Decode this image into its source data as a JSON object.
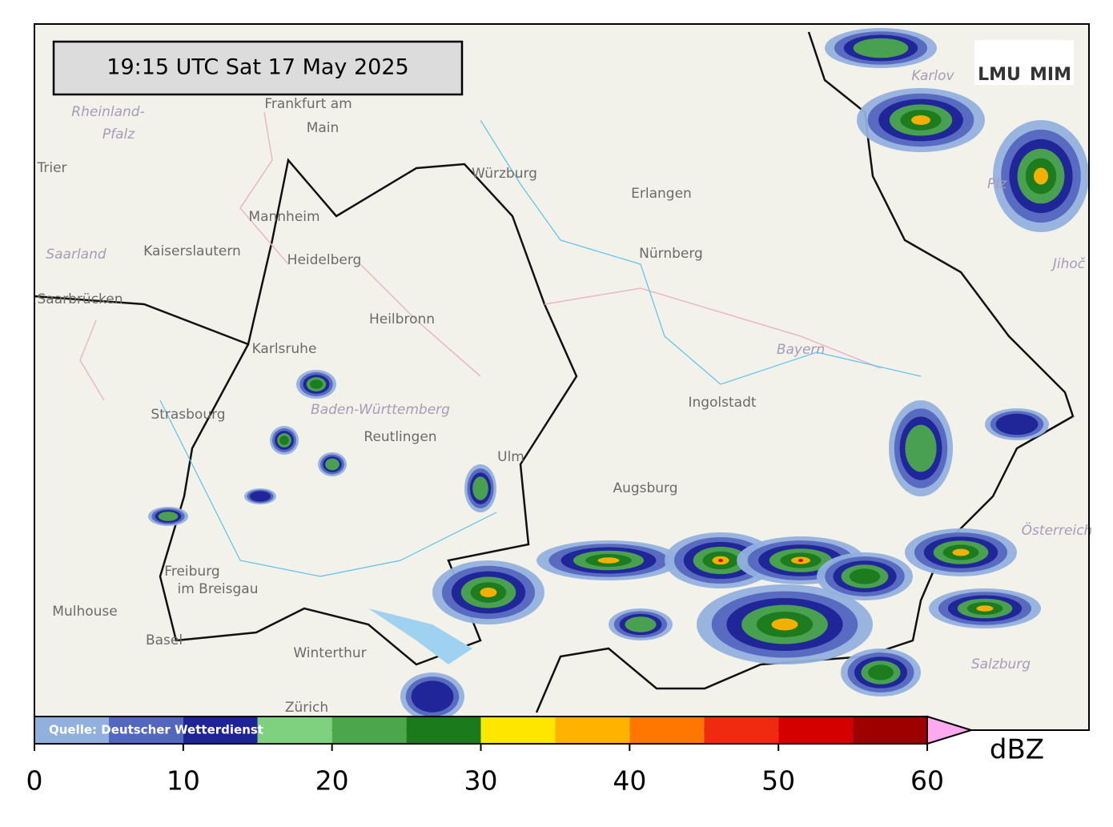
{
  "header": {
    "timestamp": "19:15 UTC  Sat 17 May 2025",
    "logo": {
      "left": "LMU",
      "right": "MIM"
    }
  },
  "map": {
    "places": [
      "Frankfurt am",
      "Main",
      "Rheinland-",
      "Pfalz",
      "Trier",
      "Saarland",
      "Kaiserslautern",
      "Mannheim",
      "Heidelberg",
      "Saarbrücken",
      "Karlsruhe",
      "Heilbronn",
      "Strasbourg",
      "Baden-Württemberg",
      "Reutlingen",
      "Ulm",
      "Würzburg",
      "Erlangen",
      "Nürnberg",
      "Ingolstadt",
      "Bayern",
      "Augsburg",
      "Freiburg",
      "im Breisgau",
      "Mulhouse",
      "Basel",
      "Winterthur",
      "Zürich",
      "Karlov",
      "Plz",
      "Jihoč",
      "Österreich",
      "Salzburg"
    ]
  },
  "colorbar": {
    "source": "Quelle: Deutscher Wetterdienst",
    "unit": "dBZ",
    "lim": [
      0,
      60
    ],
    "bounds": [
      0,
      5,
      10,
      15,
      20,
      25,
      30,
      35,
      40,
      45,
      50,
      55,
      60
    ],
    "colors": [
      "#92b0de",
      "#5467bf",
      "#1e2396",
      "#7fd07f",
      "#4ca64c",
      "#1b7a1b",
      "#ffe600",
      "#ffb300",
      "#ff7600",
      "#f02a10",
      "#d40000",
      "#9e0000"
    ],
    "over_color": "#ffaaee",
    "ticks": [
      0,
      10,
      20,
      30,
      40,
      50,
      60
    ]
  }
}
